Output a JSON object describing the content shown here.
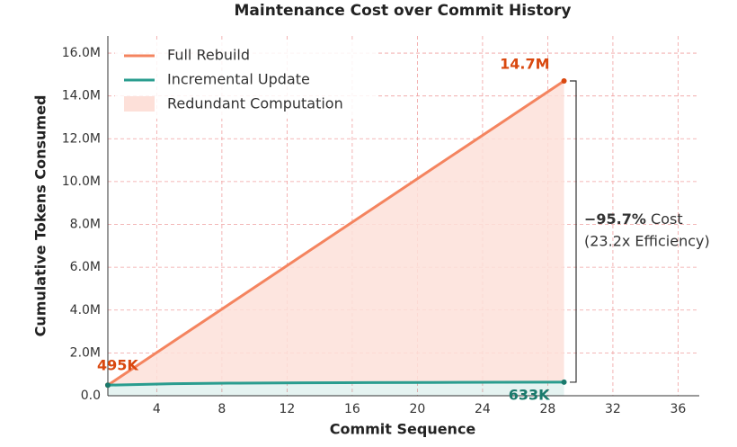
{
  "chart_data": {
    "type": "line",
    "title": "Maintenance Cost over Commit History",
    "x_label": "Commit Sequence",
    "y_label": "Cumulative Tokens Consumed",
    "x": [
      1,
      5,
      9,
      13,
      17,
      21,
      25,
      29
    ],
    "series": [
      {
        "name": "Full Rebuild",
        "color": "#f4845f",
        "label_color": "#d9480f",
        "values": [
          495000,
          2524000,
          4553000,
          6583000,
          8612000,
          10641000,
          12670000,
          14700000
        ],
        "value_labels": [
          "495K",
          null,
          null,
          null,
          null,
          null,
          null,
          "14.7M"
        ]
      },
      {
        "name": "Incremental Update",
        "color": "#2a9d8f",
        "label_color": "#1a7a6d",
        "values": [
          495000,
          560000,
          590000,
          605000,
          615000,
          622000,
          628000,
          633000
        ],
        "value_labels": [
          null,
          null,
          null,
          null,
          null,
          null,
          null,
          "633K"
        ]
      }
    ],
    "area": {
      "name": "Redundant Computation",
      "color": "#fde0d9"
    },
    "annotation": {
      "reduction": "−95.7%",
      "reduction_label": "Cost",
      "efficiency": "(23.2x Efficiency)"
    },
    "xlim": [
      1,
      37.3
    ],
    "xticks": [
      4,
      8,
      12,
      16,
      20,
      24,
      28,
      32,
      36
    ],
    "ylim": [
      0,
      16800000
    ],
    "yticks": [
      {
        "value": 0,
        "label": "0.0"
      },
      {
        "value": 2000000,
        "label": "2.0M"
      },
      {
        "value": 4000000,
        "label": "4.0M"
      },
      {
        "value": 6000000,
        "label": "6.0M"
      },
      {
        "value": 8000000,
        "label": "8.0M"
      },
      {
        "value": 10000000,
        "label": "10.0M"
      },
      {
        "value": 12000000,
        "label": "12.0M"
      },
      {
        "value": 14000000,
        "label": "14.0M"
      },
      {
        "value": 16000000,
        "label": "16.0M"
      }
    ],
    "grid": true,
    "legend": "upper left"
  }
}
